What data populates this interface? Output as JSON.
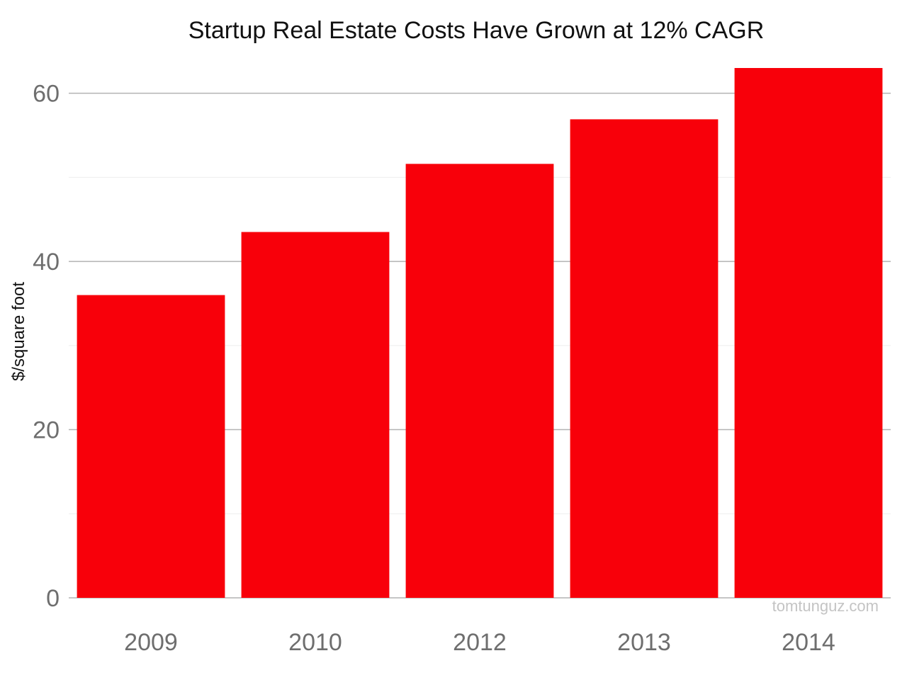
{
  "chart_data": {
    "type": "bar",
    "title": "Startup Real Estate Costs Have Grown at 12% CAGR",
    "xlabel": "",
    "ylabel": "$/square foot",
    "categories": [
      "2009",
      "2010",
      "2012",
      "2013",
      "2014"
    ],
    "values": [
      36,
      43.5,
      51.6,
      56.9,
      63
    ],
    "ylim": [
      0,
      63
    ],
    "yticks": [
      0,
      20,
      40,
      60
    ],
    "grid": true,
    "bar_color": "#f8000a",
    "gridline_color": "#b3b3b3",
    "minor_gridline_color": "#ededed"
  },
  "watermark": "tomtunguz.com"
}
